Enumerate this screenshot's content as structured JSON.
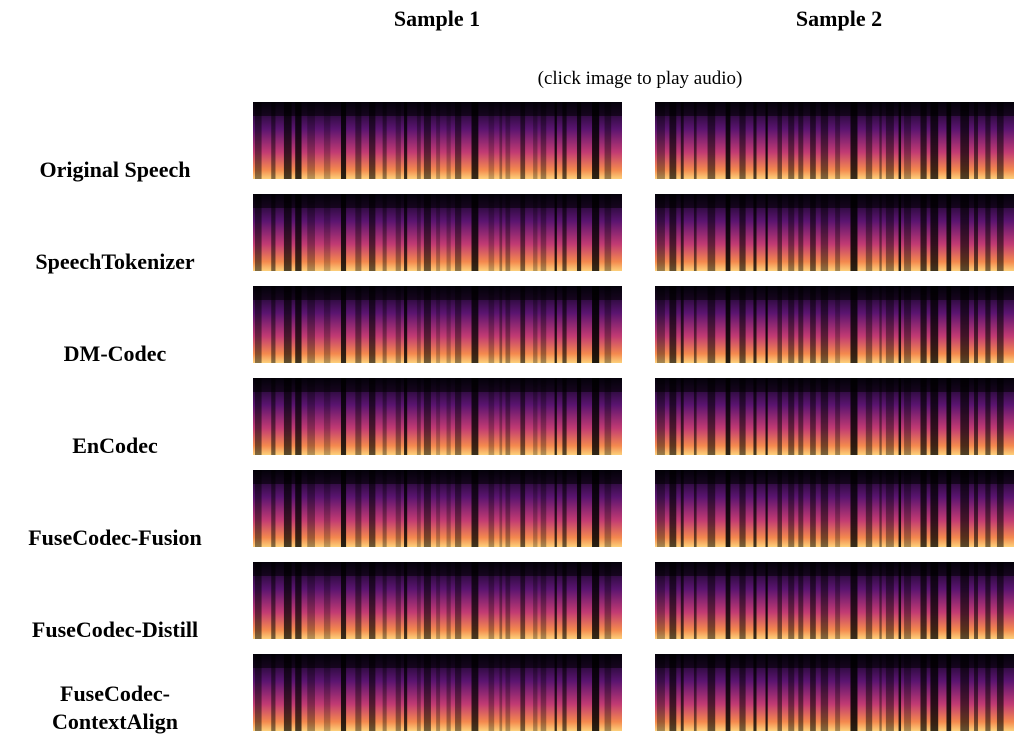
{
  "header": {
    "columns": [
      "Sample 1",
      "Sample 2"
    ],
    "note": "(click image to play audio)"
  },
  "rows": [
    {
      "label": "Original Speech"
    },
    {
      "label": "SpeechTokenizer"
    },
    {
      "label": "DM-Codec"
    },
    {
      "label": "EnCodec"
    },
    {
      "label": "FuseCodec-Fusion"
    },
    {
      "label": "FuseCodec-Distill"
    },
    {
      "label": "FuseCodec-ContextAlign"
    }
  ]
}
